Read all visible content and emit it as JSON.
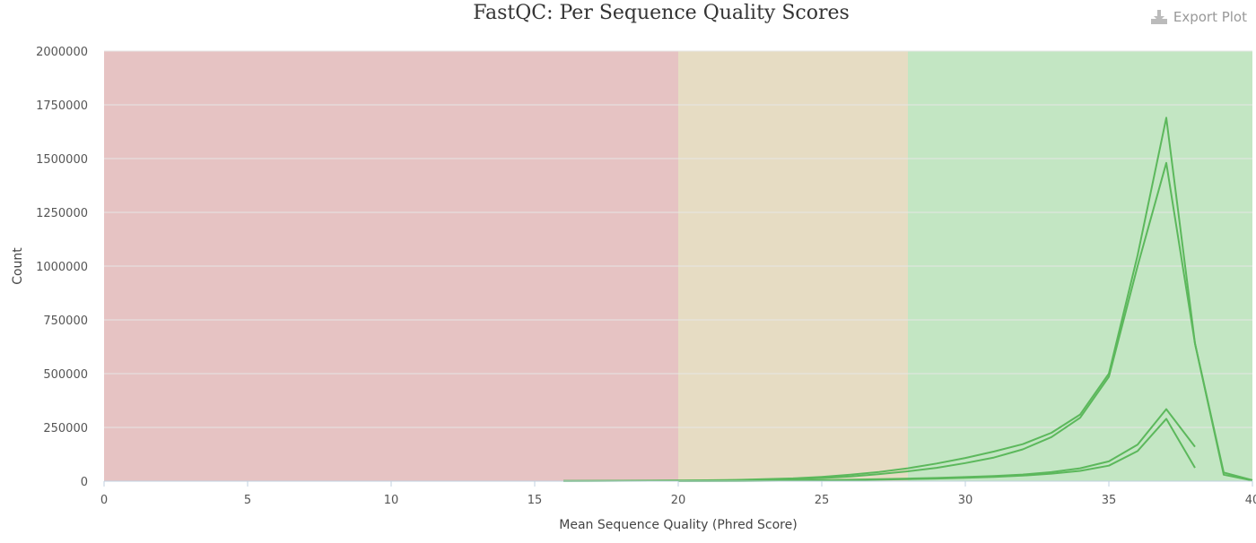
{
  "export_button": {
    "label": "Export Plot",
    "icon": "download-icon"
  },
  "chart_data": {
    "type": "line",
    "title": "FastQC: Per Sequence Quality Scores",
    "xlabel": "Mean Sequence Quality (Phred Score)",
    "ylabel": "Count",
    "xlim": [
      0,
      40
    ],
    "ylim": [
      0,
      2000000
    ],
    "xticks": [
      0,
      5,
      10,
      15,
      20,
      25,
      30,
      35,
      40
    ],
    "yticks": [
      0,
      250000,
      500000,
      750000,
      1000000,
      1250000,
      1500000,
      1750000,
      2000000
    ],
    "grid": true,
    "bands": [
      {
        "from": 0,
        "to": 20,
        "color": "#e6c3c3"
      },
      {
        "from": 20,
        "to": 28,
        "color": "#e6dcc3"
      },
      {
        "from": 28,
        "to": 40,
        "color": "#c3e6c3"
      }
    ],
    "line_color": "#5cb85c",
    "series": [
      {
        "x": [
          16,
          17,
          18,
          19,
          20,
          21,
          22,
          23,
          24,
          25,
          26,
          27,
          28,
          29,
          30,
          31,
          32,
          33,
          34,
          35,
          36,
          37,
          38,
          39,
          40
        ],
        "values": [
          1000,
          1500,
          2000,
          2500,
          3000,
          4000,
          6000,
          9000,
          13000,
          20000,
          30000,
          43000,
          60000,
          82000,
          108000,
          138000,
          172000,
          225000,
          310000,
          500000,
          1050000,
          1690000,
          640000,
          40000,
          5000
        ]
      },
      {
        "x": [
          16,
          17,
          18,
          19,
          20,
          21,
          22,
          23,
          24,
          25,
          26,
          27,
          28,
          29,
          30,
          31,
          32,
          33,
          34,
          35,
          36,
          37,
          38,
          39,
          40
        ],
        "values": [
          800,
          1200,
          1600,
          2000,
          2500,
          3000,
          4500,
          6500,
          9500,
          14000,
          22000,
          33000,
          46000,
          62000,
          84000,
          110000,
          148000,
          205000,
          295000,
          485000,
          1000000,
          1480000,
          640000,
          30000,
          3000
        ]
      },
      {
        "x": [
          20,
          21,
          22,
          23,
          24,
          25,
          26,
          27,
          28,
          29,
          30,
          31,
          32,
          33,
          34,
          35,
          36,
          37,
          38
        ],
        "values": [
          500,
          800,
          1200,
          2000,
          3000,
          4500,
          6500,
          9000,
          12000,
          15000,
          19000,
          24000,
          31000,
          42000,
          60000,
          92000,
          170000,
          335000,
          160000
        ]
      },
      {
        "x": [
          20,
          21,
          22,
          23,
          24,
          25,
          26,
          27,
          28,
          29,
          30,
          31,
          32,
          33,
          34,
          35,
          36,
          37,
          38
        ],
        "values": [
          400,
          600,
          1000,
          1500,
          2500,
          3500,
          5000,
          7000,
          9500,
          12000,
          15500,
          20000,
          26000,
          35000,
          48000,
          72000,
          140000,
          290000,
          62000
        ]
      }
    ]
  }
}
